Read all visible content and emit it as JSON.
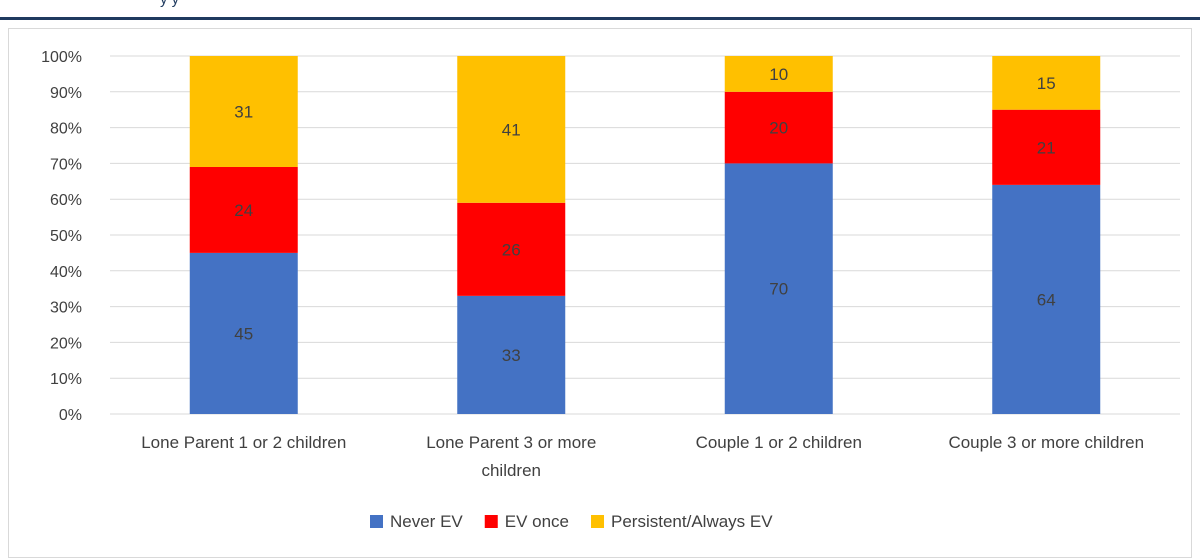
{
  "header": {
    "partial_title": "y                         y"
  },
  "colors": {
    "never": "#4472c4",
    "once": "#ff0000",
    "persistent": "#ffc000",
    "grid": "#d9d9d9",
    "band": "#1f3a5f"
  },
  "chart_data": {
    "type": "bar",
    "stacked": true,
    "normalized": "percent",
    "categories": [
      [
        "Lone Parent 1 or 2 children"
      ],
      [
        "Lone Parent 3 or more",
        "children"
      ],
      [
        "Couple 1 or 2 children"
      ],
      [
        "Couple 3 or more children"
      ]
    ],
    "series": [
      {
        "name": "Never EV",
        "color": "#4472c4",
        "values": [
          45,
          33,
          70,
          64
        ]
      },
      {
        "name": "EV once",
        "color": "#ff0000",
        "values": [
          24,
          26,
          20,
          21
        ]
      },
      {
        "name": "Persistent/Always EV",
        "color": "#ffc000",
        "values": [
          31,
          41,
          10,
          15
        ]
      }
    ],
    "yticks": [
      "0%",
      "10%",
      "20%",
      "30%",
      "40%",
      "50%",
      "60%",
      "70%",
      "80%",
      "90%",
      "100%"
    ],
    "ylim": [
      0,
      100
    ],
    "grid": true,
    "legend_position": "bottom"
  }
}
